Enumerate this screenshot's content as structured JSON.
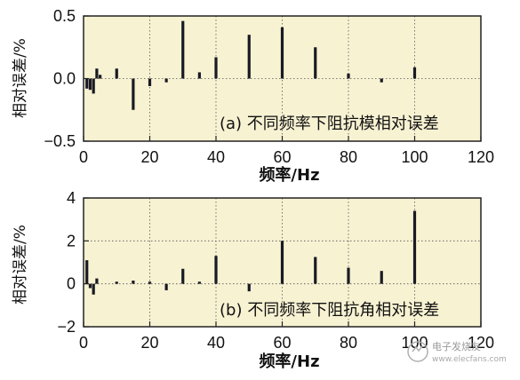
{
  "chart_data": [
    {
      "type": "bar",
      "annotation": "(a) 不同频率下阻抗模相对误差",
      "xlabel": "频率/Hz",
      "ylabel": "相对误差/%",
      "xlim": [
        0,
        120
      ],
      "ylim": [
        -0.5,
        0.5
      ],
      "xticks": [
        "0",
        "20",
        "40",
        "60",
        "80",
        "100",
        "120"
      ],
      "yticks": [
        "0.5",
        "0.0",
        "−0.5"
      ],
      "ytick_values": [
        0.5,
        0.0,
        -0.5
      ],
      "grid": "dotted",
      "x": [
        1,
        2,
        3,
        4,
        5,
        10,
        15,
        20,
        25,
        30,
        35,
        40,
        50,
        60,
        70,
        80,
        90,
        100
      ],
      "values": [
        -0.08,
        -0.09,
        -0.12,
        0.08,
        0.03,
        0.08,
        -0.25,
        -0.06,
        -0.03,
        0.46,
        0.05,
        0.17,
        0.35,
        0.41,
        0.25,
        0.04,
        -0.03,
        0.09
      ]
    },
    {
      "type": "bar",
      "annotation": "(b) 不同频率下阻抗角相对误差",
      "xlabel": "频率/Hz",
      "ylabel": "相对误差/%",
      "xlim": [
        0,
        120
      ],
      "ylim": [
        -2,
        4
      ],
      "xticks": [
        "0",
        "20",
        "40",
        "60",
        "80",
        "100",
        "120"
      ],
      "yticks": [
        "4",
        "2",
        "0",
        "−2"
      ],
      "ytick_values": [
        4,
        2,
        0,
        -2
      ],
      "grid": "dotted",
      "x": [
        1,
        2,
        3,
        4,
        10,
        15,
        20,
        25,
        30,
        35,
        40,
        50,
        60,
        70,
        80,
        90,
        100
      ],
      "values": [
        1.1,
        -0.2,
        -0.5,
        0.25,
        0.1,
        0.15,
        0.1,
        -0.3,
        0.7,
        0.1,
        1.3,
        -0.35,
        2.0,
        1.25,
        0.75,
        0.6,
        3.4
      ]
    }
  ],
  "watermark": {
    "brand": "电子发烧友",
    "site": "www.elecfans.com"
  },
  "colors": {
    "plot_bg": "#f7f2d2",
    "bar": "#1a1a24",
    "axis": "#222222"
  }
}
